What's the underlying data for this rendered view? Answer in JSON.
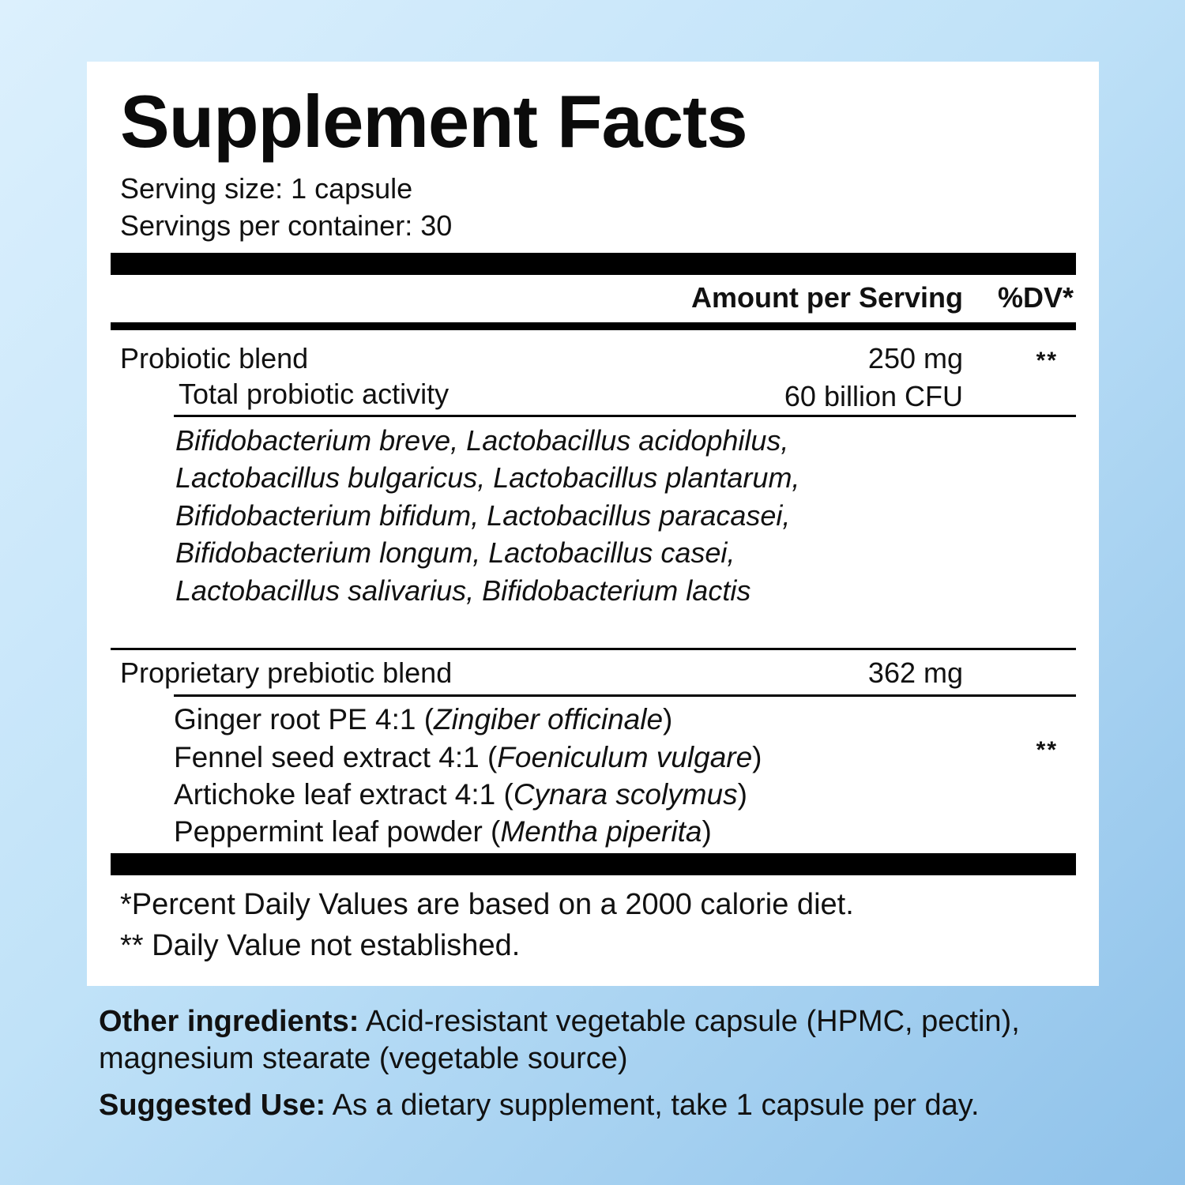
{
  "facts": {
    "title": "Supplement Facts",
    "serving_size": "Serving size: 1 capsule",
    "servings_per_container": "Servings per container: 30",
    "col_amount": "Amount per Serving",
    "col_dv": "%DV*"
  },
  "probiotic": {
    "name": "Probiotic blend",
    "amount": "250 mg",
    "dv": "**",
    "sub_name": "Total probiotic activity",
    "sub_amount": "60 billion CFU",
    "strains": "Bifidobacterium breve, Lactobacillus acidophilus, Lactobacillus bulgaricus, Lactobacillus plantarum, Bifidobacterium bifidum, Lactobacillus paracasei, Bifidobacterium longum, Lactobacillus casei, Lactobacillus salivarius, Bifidobacterium lactis"
  },
  "prebiotic": {
    "name": "Proprietary prebiotic blend",
    "amount": "362 mg",
    "dv": "**",
    "items": [
      {
        "name": "Ginger root PE 4:1 (",
        "latin": "Zingiber officinale",
        "close": ")"
      },
      {
        "name": "Fennel seed extract 4:1 (",
        "latin": "Foeniculum vulgare",
        "close": ")"
      },
      {
        "name": "Artichoke leaf extract 4:1 (",
        "latin": "Cynara scolymus",
        "close": ")"
      },
      {
        "name": "Peppermint leaf powder (",
        "latin": "Mentha piperita",
        "close": ")"
      }
    ]
  },
  "footnotes": {
    "dv_note": "*Percent Daily Values are based on a 2000 calorie diet.",
    "not_established": "** Daily Value not established."
  },
  "other_ingredients": {
    "label": "Other ingredients:",
    "text": " Acid-resistant vegetable capsule (HPMC, pectin), magnesium stearate (vegetable source)"
  },
  "suggested_use": {
    "label": "Suggested Use:",
    "text": " As a dietary supplement, take 1 capsule per day."
  }
}
